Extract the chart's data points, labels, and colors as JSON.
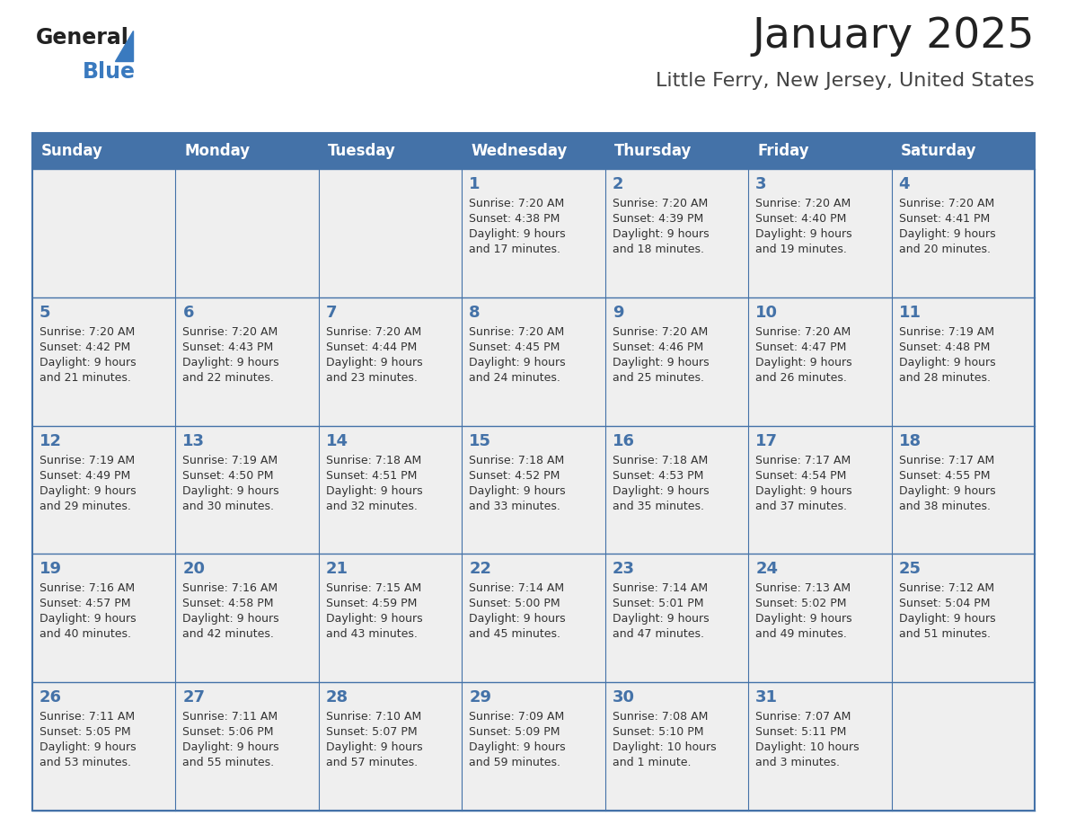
{
  "title": "January 2025",
  "subtitle": "Little Ferry, New Jersey, United States",
  "days_of_week": [
    "Sunday",
    "Monday",
    "Tuesday",
    "Wednesday",
    "Thursday",
    "Friday",
    "Saturday"
  ],
  "header_bg": "#4472a8",
  "header_text": "#ffffff",
  "cell_bg": "#efefef",
  "border_color": "#4472a8",
  "day_number_color": "#4472a8",
  "cell_text_color": "#333333",
  "title_color": "#222222",
  "subtitle_color": "#444444",
  "logo_general_color": "#222222",
  "logo_blue_color": "#3a7abf",
  "calendar_data": [
    [
      null,
      null,
      null,
      {
        "day": 1,
        "sunrise": "7:20 AM",
        "sunset": "4:38 PM",
        "daylight": "9 hours",
        "daylight2": "and 17 minutes."
      },
      {
        "day": 2,
        "sunrise": "7:20 AM",
        "sunset": "4:39 PM",
        "daylight": "9 hours",
        "daylight2": "and 18 minutes."
      },
      {
        "day": 3,
        "sunrise": "7:20 AM",
        "sunset": "4:40 PM",
        "daylight": "9 hours",
        "daylight2": "and 19 minutes."
      },
      {
        "day": 4,
        "sunrise": "7:20 AM",
        "sunset": "4:41 PM",
        "daylight": "9 hours",
        "daylight2": "and 20 minutes."
      }
    ],
    [
      {
        "day": 5,
        "sunrise": "7:20 AM",
        "sunset": "4:42 PM",
        "daylight": "9 hours",
        "daylight2": "and 21 minutes."
      },
      {
        "day": 6,
        "sunrise": "7:20 AM",
        "sunset": "4:43 PM",
        "daylight": "9 hours",
        "daylight2": "and 22 minutes."
      },
      {
        "day": 7,
        "sunrise": "7:20 AM",
        "sunset": "4:44 PM",
        "daylight": "9 hours",
        "daylight2": "and 23 minutes."
      },
      {
        "day": 8,
        "sunrise": "7:20 AM",
        "sunset": "4:45 PM",
        "daylight": "9 hours",
        "daylight2": "and 24 minutes."
      },
      {
        "day": 9,
        "sunrise": "7:20 AM",
        "sunset": "4:46 PM",
        "daylight": "9 hours",
        "daylight2": "and 25 minutes."
      },
      {
        "day": 10,
        "sunrise": "7:20 AM",
        "sunset": "4:47 PM",
        "daylight": "9 hours",
        "daylight2": "and 26 minutes."
      },
      {
        "day": 11,
        "sunrise": "7:19 AM",
        "sunset": "4:48 PM",
        "daylight": "9 hours",
        "daylight2": "and 28 minutes."
      }
    ],
    [
      {
        "day": 12,
        "sunrise": "7:19 AM",
        "sunset": "4:49 PM",
        "daylight": "9 hours",
        "daylight2": "and 29 minutes."
      },
      {
        "day": 13,
        "sunrise": "7:19 AM",
        "sunset": "4:50 PM",
        "daylight": "9 hours",
        "daylight2": "and 30 minutes."
      },
      {
        "day": 14,
        "sunrise": "7:18 AM",
        "sunset": "4:51 PM",
        "daylight": "9 hours",
        "daylight2": "and 32 minutes."
      },
      {
        "day": 15,
        "sunrise": "7:18 AM",
        "sunset": "4:52 PM",
        "daylight": "9 hours",
        "daylight2": "and 33 minutes."
      },
      {
        "day": 16,
        "sunrise": "7:18 AM",
        "sunset": "4:53 PM",
        "daylight": "9 hours",
        "daylight2": "and 35 minutes."
      },
      {
        "day": 17,
        "sunrise": "7:17 AM",
        "sunset": "4:54 PM",
        "daylight": "9 hours",
        "daylight2": "and 37 minutes."
      },
      {
        "day": 18,
        "sunrise": "7:17 AM",
        "sunset": "4:55 PM",
        "daylight": "9 hours",
        "daylight2": "and 38 minutes."
      }
    ],
    [
      {
        "day": 19,
        "sunrise": "7:16 AM",
        "sunset": "4:57 PM",
        "daylight": "9 hours",
        "daylight2": "and 40 minutes."
      },
      {
        "day": 20,
        "sunrise": "7:16 AM",
        "sunset": "4:58 PM",
        "daylight": "9 hours",
        "daylight2": "and 42 minutes."
      },
      {
        "day": 21,
        "sunrise": "7:15 AM",
        "sunset": "4:59 PM",
        "daylight": "9 hours",
        "daylight2": "and 43 minutes."
      },
      {
        "day": 22,
        "sunrise": "7:14 AM",
        "sunset": "5:00 PM",
        "daylight": "9 hours",
        "daylight2": "and 45 minutes."
      },
      {
        "day": 23,
        "sunrise": "7:14 AM",
        "sunset": "5:01 PM",
        "daylight": "9 hours",
        "daylight2": "and 47 minutes."
      },
      {
        "day": 24,
        "sunrise": "7:13 AM",
        "sunset": "5:02 PM",
        "daylight": "9 hours",
        "daylight2": "and 49 minutes."
      },
      {
        "day": 25,
        "sunrise": "7:12 AM",
        "sunset": "5:04 PM",
        "daylight": "9 hours",
        "daylight2": "and 51 minutes."
      }
    ],
    [
      {
        "day": 26,
        "sunrise": "7:11 AM",
        "sunset": "5:05 PM",
        "daylight": "9 hours",
        "daylight2": "and 53 minutes."
      },
      {
        "day": 27,
        "sunrise": "7:11 AM",
        "sunset": "5:06 PM",
        "daylight": "9 hours",
        "daylight2": "and 55 minutes."
      },
      {
        "day": 28,
        "sunrise": "7:10 AM",
        "sunset": "5:07 PM",
        "daylight": "9 hours",
        "daylight2": "and 57 minutes."
      },
      {
        "day": 29,
        "sunrise": "7:09 AM",
        "sunset": "5:09 PM",
        "daylight": "9 hours",
        "daylight2": "and 59 minutes."
      },
      {
        "day": 30,
        "sunrise": "7:08 AM",
        "sunset": "5:10 PM",
        "daylight": "10 hours",
        "daylight2": "and 1 minute."
      },
      {
        "day": 31,
        "sunrise": "7:07 AM",
        "sunset": "5:11 PM",
        "daylight": "10 hours",
        "daylight2": "and 3 minutes."
      },
      null
    ]
  ]
}
